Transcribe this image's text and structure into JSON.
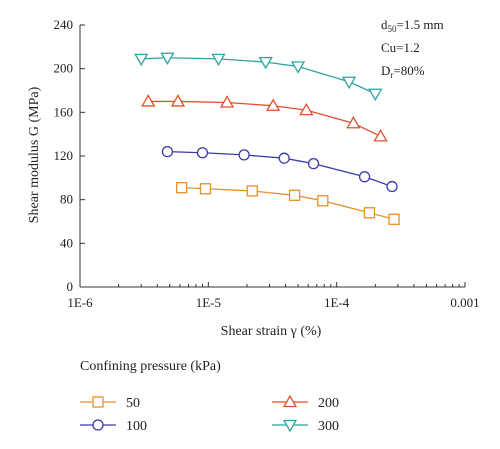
{
  "chart_data": {
    "type": "scatter",
    "xlabel": "Shear strain γ (%)",
    "ylabel": "Shear modulus G (MPa)",
    "xscale": "log",
    "xlim": [
      1e-06,
      0.001
    ],
    "ylim": [
      0,
      240
    ],
    "x_ticks": [
      1e-06,
      1e-05,
      0.0001,
      0.001
    ],
    "x_tick_labels": [
      "1E-6",
      "1E-5",
      "1E-4",
      "0.001"
    ],
    "y_ticks": [
      0,
      40,
      80,
      120,
      160,
      200,
      240
    ],
    "y_tick_labels": [
      "0",
      "40",
      "80",
      "120",
      "160",
      "200",
      "240"
    ],
    "grid": false,
    "legend_title": "Confining pressure (kPa)",
    "legend_placement": "bottom",
    "annotations": {
      "d50_base": "d",
      "d50_sub": "50",
      "d50_rest": "=1.5 mm",
      "cu": "Cu=1.2",
      "dr_base": "D",
      "dr_sub": "r",
      "dr_rest": "=80%"
    },
    "series": [
      {
        "name": "50",
        "marker": "square",
        "color": "#E8902A",
        "x": [
          6.2e-06,
          9.5e-06,
          2.2e-05,
          4.7e-05,
          7.8e-05,
          0.00018,
          0.00028
        ],
        "y": [
          91,
          90,
          88,
          84,
          79,
          68,
          62
        ]
      },
      {
        "name": "100",
        "marker": "circle",
        "color": "#3B3AA8",
        "x": [
          4.8e-06,
          9e-06,
          1.9e-05,
          3.9e-05,
          6.6e-05,
          0.000165,
          0.00027
        ],
        "y": [
          124,
          123,
          121,
          118,
          113,
          101,
          92
        ]
      },
      {
        "name": "200",
        "marker": "triangle-up",
        "color": "#E0502A",
        "x": [
          3.4e-06,
          5.8e-06,
          1.4e-05,
          3.2e-05,
          5.8e-05,
          0.000135,
          0.00022
        ],
        "y": [
          170,
          170,
          169,
          166,
          162,
          150,
          138
        ]
      },
      {
        "name": "300",
        "marker": "triangle-down",
        "color": "#2FA3A0",
        "x": [
          3e-06,
          4.8e-06,
          1.2e-05,
          2.8e-05,
          5e-05,
          0.000125,
          0.0002
        ],
        "y": [
          209,
          210,
          209,
          206,
          202,
          188,
          177
        ]
      }
    ]
  }
}
